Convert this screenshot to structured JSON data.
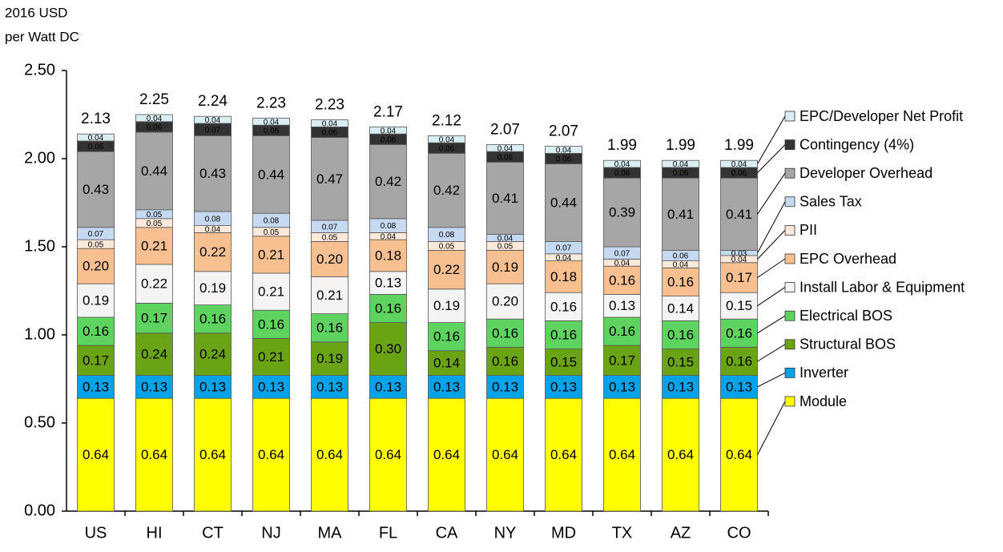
{
  "chart_data": {
    "type": "stacked-bar",
    "ylabel": [
      "2016 USD",
      "per Watt DC"
    ],
    "categories": [
      "US",
      "HI",
      "CT",
      "NJ",
      "MA",
      "FL",
      "CA",
      "NY",
      "MD",
      "TX",
      "AZ",
      "CO"
    ],
    "totals": [
      2.13,
      2.25,
      2.24,
      2.23,
      2.23,
      2.17,
      2.12,
      2.07,
      2.07,
      1.99,
      1.99,
      1.99
    ],
    "ylim": [
      0,
      2.5
    ],
    "yticks": [
      {
        "value": 0,
        "label": "0.00"
      },
      {
        "value": 0.5,
        "label": "0.50"
      },
      {
        "value": 1,
        "label": "1.00"
      },
      {
        "value": 1.5,
        "label": "1.50"
      },
      {
        "value": 2,
        "label": "2.00"
      },
      {
        "value": 2.5,
        "label": "2.50"
      }
    ],
    "legend": "right",
    "series": [
      {
        "name": "Module",
        "color": "#ffff00",
        "values": [
          0.64,
          0.64,
          0.64,
          0.64,
          0.64,
          0.64,
          0.64,
          0.64,
          0.64,
          0.64,
          0.64,
          0.64
        ],
        "value_labels": [
          "0.64",
          "0.64",
          "0.64",
          "0.64",
          "0.64",
          "0.64",
          "0.64",
          "0.64",
          "0.64",
          "0.64",
          "0.64",
          "0.64"
        ]
      },
      {
        "name": "Inverter",
        "color": "#00a2e8",
        "values": [
          0.13,
          0.13,
          0.13,
          0.13,
          0.13,
          0.13,
          0.13,
          0.13,
          0.13,
          0.13,
          0.13,
          0.13
        ],
        "value_labels": [
          "0.13",
          "0.13",
          "0.13",
          "0.13",
          "0.13",
          "0.13",
          "0.13",
          "0.13",
          "0.13",
          "0.13",
          "0.13",
          "0.13"
        ]
      },
      {
        "name": "Structural BOS",
        "color": "#6aa313",
        "values": [
          0.17,
          0.24,
          0.24,
          0.21,
          0.19,
          0.3,
          0.14,
          0.16,
          0.15,
          0.17,
          0.15,
          0.16
        ],
        "value_labels": [
          "0.17",
          "0.24",
          "0.24",
          "0.21",
          "0.19",
          "0.30",
          "0.14",
          "0.16",
          "0.15",
          "0.17",
          "0.15",
          "0.16"
        ]
      },
      {
        "name": "Electrical BOS",
        "color": "#5fd35f",
        "values": [
          0.16,
          0.17,
          0.16,
          0.16,
          0.16,
          0.16,
          0.16,
          0.16,
          0.16,
          0.16,
          0.16,
          0.16
        ],
        "value_labels": [
          "0.16",
          "0.17",
          "0.16",
          "0.16",
          "0.16",
          "0.16",
          "0.16",
          "0.16",
          "0.16",
          "0.16",
          "0.16",
          "0.16"
        ]
      },
      {
        "name": "Install Labor & Equipment",
        "color": "#f4f4f4",
        "values": [
          0.19,
          0.22,
          0.19,
          0.21,
          0.21,
          0.13,
          0.19,
          0.2,
          0.16,
          0.13,
          0.14,
          0.15
        ],
        "value_labels": [
          "0.19",
          "0.22",
          "0.19",
          "0.21",
          "0.21",
          "0.13",
          "0.19",
          "0.20",
          "0.16",
          "0.13",
          "0.14",
          "0.15"
        ]
      },
      {
        "name": "EPC Overhead",
        "color": "#f8c090",
        "values": [
          0.2,
          0.21,
          0.22,
          0.21,
          0.2,
          0.18,
          0.22,
          0.19,
          0.18,
          0.16,
          0.16,
          0.17
        ],
        "value_labels": [
          "0.20",
          "0.21",
          "0.22",
          "0.21",
          "0.20",
          "0.18",
          "0.22",
          "0.19",
          "0.18",
          "0.16",
          "0.16",
          "0.17"
        ]
      },
      {
        "name": "PII",
        "color": "#fde9d9",
        "values": [
          0.05,
          0.05,
          0.04,
          0.05,
          0.05,
          0.04,
          0.05,
          0.05,
          0.04,
          0.04,
          0.04,
          0.04
        ],
        "value_labels": [
          "0.05",
          "0.05",
          "0.04",
          "0.05",
          "0.05",
          "0.04",
          "0.05",
          "0.05",
          "0.04",
          "0.04",
          "0.04",
          "0.04"
        ]
      },
      {
        "name": "Sales Tax",
        "color": "#c5d9f1",
        "values": [
          0.07,
          0.05,
          0.08,
          0.08,
          0.07,
          0.08,
          0.08,
          0.04,
          0.07,
          0.07,
          0.06,
          0.03
        ],
        "value_labels": [
          "0.07",
          "0.05",
          "0.08",
          "0.08",
          "0.07",
          "0.08",
          "0.08",
          "0.04",
          "0.07",
          "0.07",
          "0.06",
          "0.03"
        ]
      },
      {
        "name": "Developer Overhead",
        "color": "#a6a6a6",
        "values": [
          0.43,
          0.44,
          0.43,
          0.44,
          0.47,
          0.42,
          0.42,
          0.41,
          0.44,
          0.39,
          0.41,
          0.41
        ],
        "value_labels": [
          "0.43",
          "0.44",
          "0.43",
          "0.44",
          "0.47",
          "0.42",
          "0.42",
          "0.41",
          "0.44",
          "0.39",
          "0.41",
          "0.41"
        ]
      },
      {
        "name": "Contingency (4%)",
        "color": "#333333",
        "values": [
          0.06,
          0.06,
          0.07,
          0.06,
          0.06,
          0.06,
          0.06,
          0.06,
          0.06,
          0.06,
          0.06,
          0.06
        ],
        "value_labels": [
          "0.06",
          "0.06",
          "0.07",
          "0.06",
          "0.06",
          "0.06",
          "0.06",
          "0.06",
          "0.06",
          "0.06",
          "0.06",
          "0.06"
        ]
      },
      {
        "name": "EPC/Developer Net Profit",
        "color": "#dbeef4",
        "values": [
          0.04,
          0.04,
          0.04,
          0.04,
          0.04,
          0.04,
          0.04,
          0.04,
          0.04,
          0.04,
          0.04,
          0.04
        ],
        "value_labels": [
          "0.04",
          "0.04",
          "0.04",
          "0.04",
          "0.04",
          "0.04",
          "0.04",
          "0.04",
          "0.04",
          "0.04",
          "0.04",
          "0.04"
        ]
      }
    ]
  }
}
